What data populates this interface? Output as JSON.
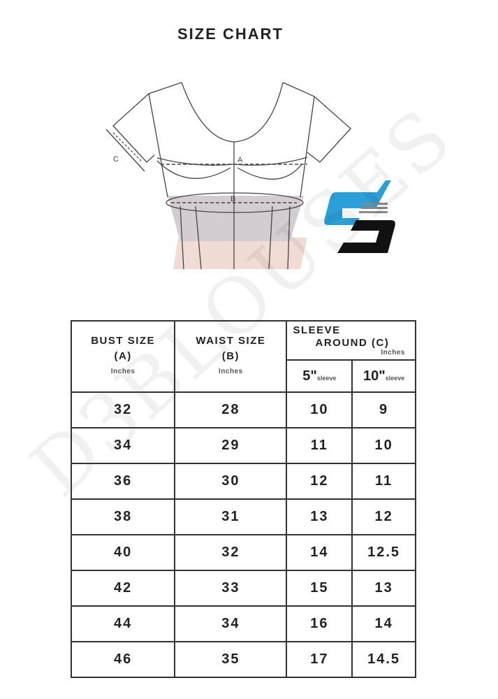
{
  "title": "SIZE CHART",
  "diagram": {
    "labels": {
      "sleeve": "C",
      "bust": "A",
      "waist": "B"
    }
  },
  "logo": {
    "brand_colors": {
      "blue": "#2a9fd8",
      "black": "#111111"
    }
  },
  "watermark": "D3BLOUSES",
  "table": {
    "headers": {
      "bust": {
        "label": "BUST SIZE",
        "code": "(A)",
        "unit": "Inches"
      },
      "waist": {
        "label": "WAIST SIZE",
        "code": "(B)",
        "unit": "Inches"
      },
      "sleeve": {
        "line1": "SLEEVE",
        "line2": "AROUND",
        "code": "(C)",
        "unit": "Inches"
      },
      "sleeve5": {
        "num": "5\"",
        "label": "sleeve"
      },
      "sleeve10": {
        "num": "10\"",
        "label": "sleeve"
      }
    },
    "rows": [
      [
        "32",
        "28",
        "10",
        "9"
      ],
      [
        "34",
        "29",
        "11",
        "10"
      ],
      [
        "36",
        "30",
        "12",
        "11"
      ],
      [
        "38",
        "31",
        "13",
        "12"
      ],
      [
        "40",
        "32",
        "14",
        "12.5"
      ],
      [
        "42",
        "33",
        "15",
        "13"
      ],
      [
        "44",
        "34",
        "16",
        "14"
      ],
      [
        "46",
        "35",
        "17",
        "14.5"
      ]
    ]
  }
}
